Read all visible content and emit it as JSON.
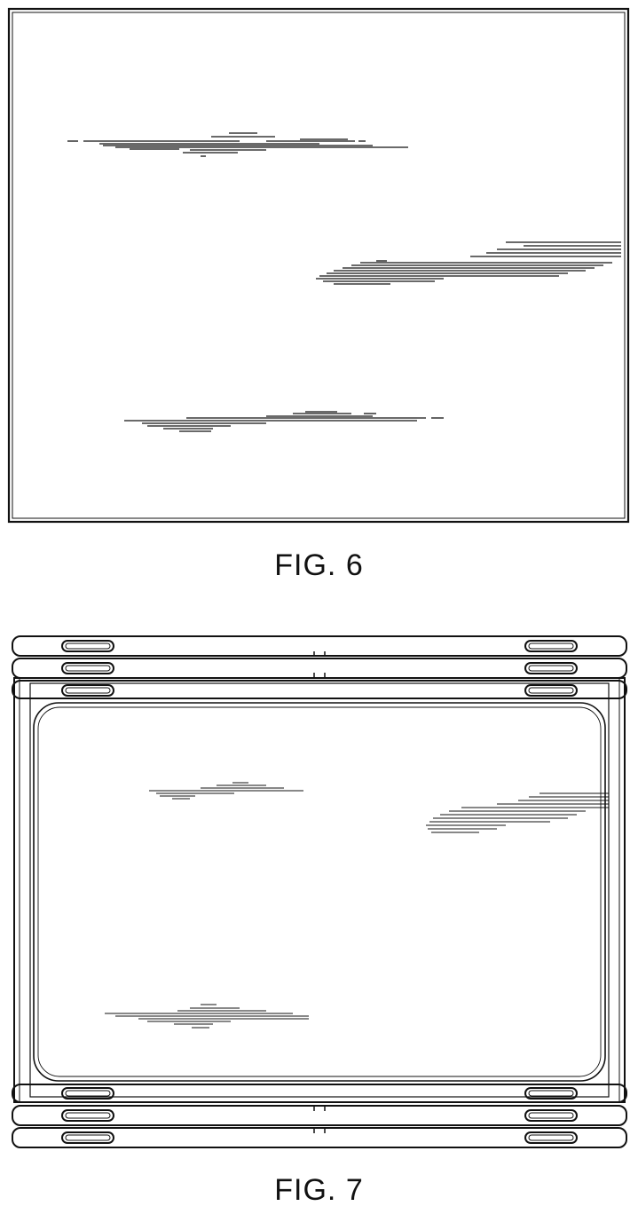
{
  "figures": [
    {
      "caption": "FIG. 6"
    },
    {
      "caption": "FIG. 7"
    }
  ],
  "colors": {
    "line": "#111111",
    "background": "#ffffff"
  }
}
